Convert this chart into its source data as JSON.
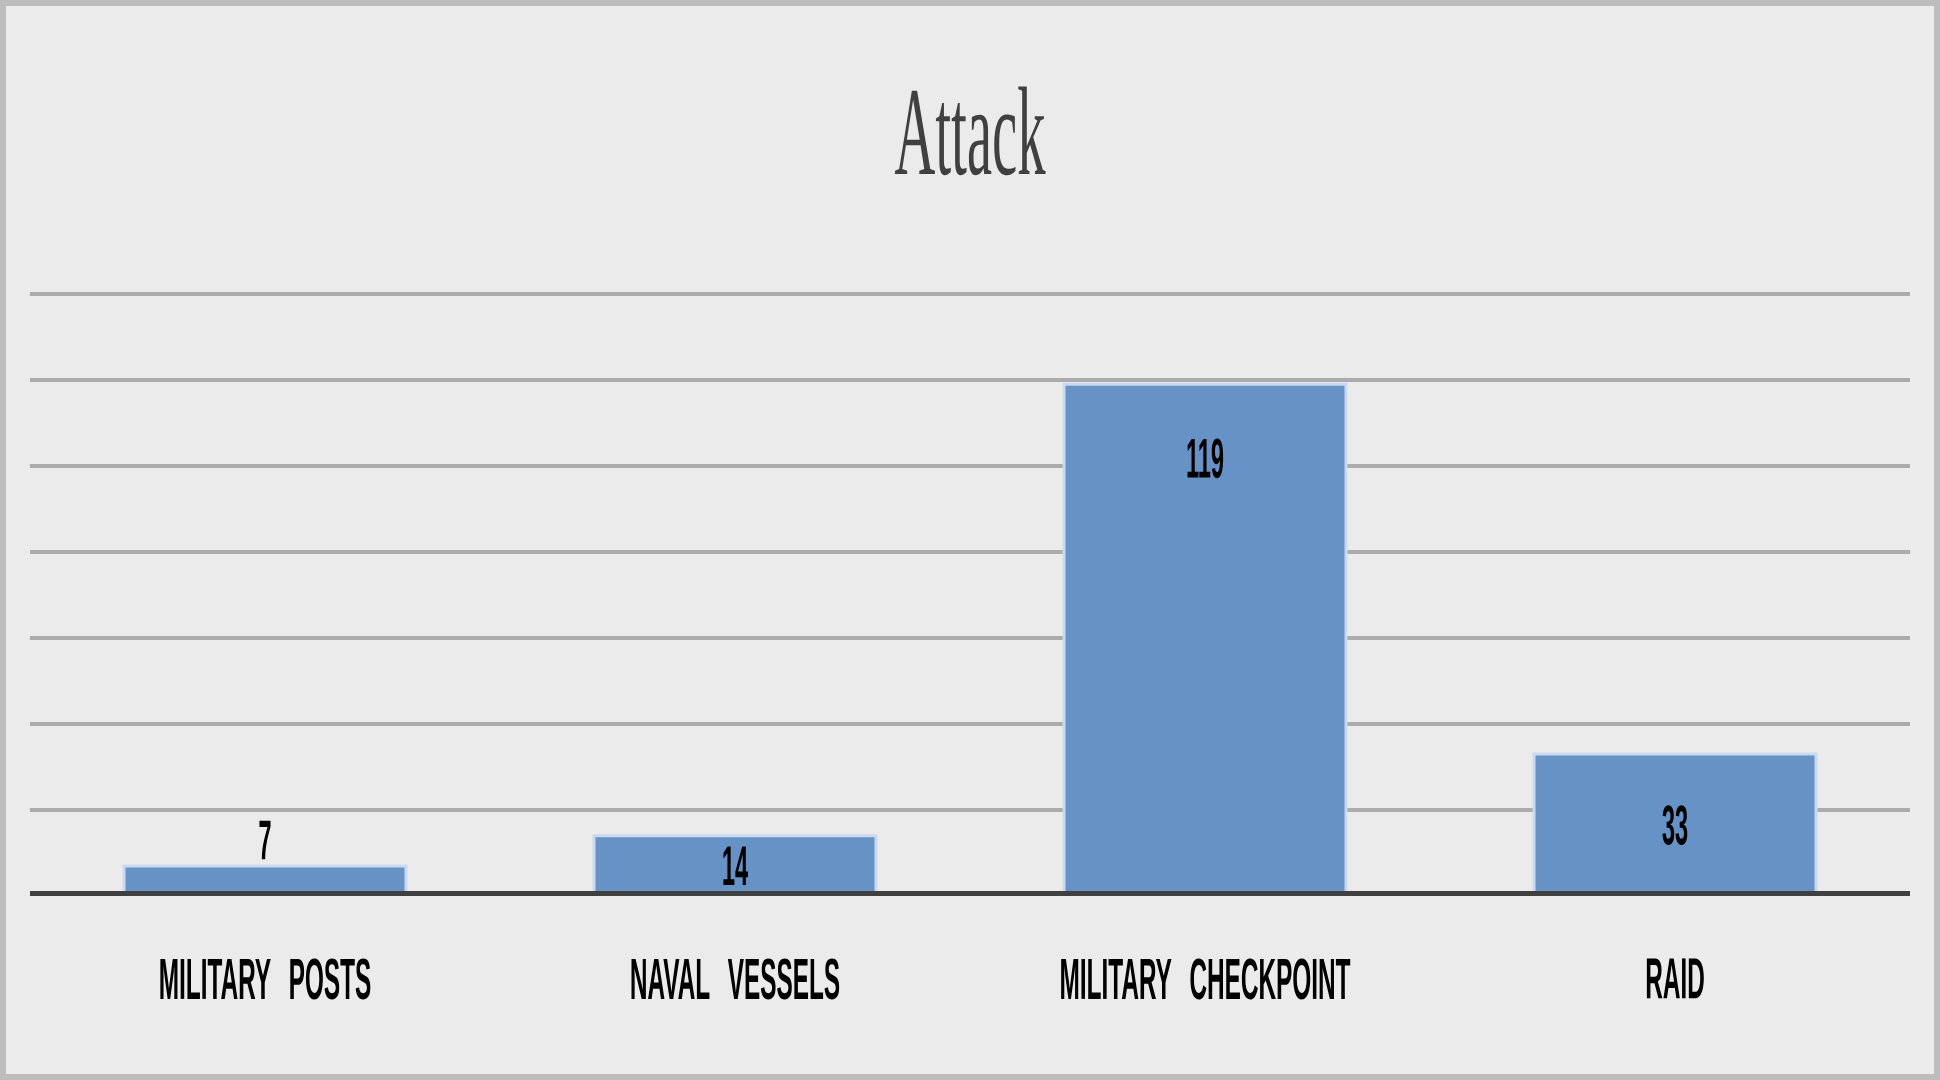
{
  "chart_data": {
    "type": "bar",
    "title": "Attack",
    "categories": [
      "MILITARY POSTS",
      "NAVAL VESSELS",
      "MILITARY CHECKPOINT",
      "RAID"
    ],
    "values": [
      7,
      14,
      119,
      33
    ],
    "color": "#6692c5",
    "data_labels": true,
    "ylim": [
      0,
      140
    ],
    "yticks": [
      {
        "value": 20,
        "label": null
      },
      {
        "value": 40,
        "label": null
      },
      {
        "value": 60,
        "label": null
      },
      {
        "value": 80,
        "label": null
      },
      {
        "value": 100,
        "label": null
      },
      {
        "value": 120,
        "label": null
      },
      {
        "value": 140,
        "label": null
      }
    ],
    "grid": "y",
    "tick_labels": "x"
  }
}
